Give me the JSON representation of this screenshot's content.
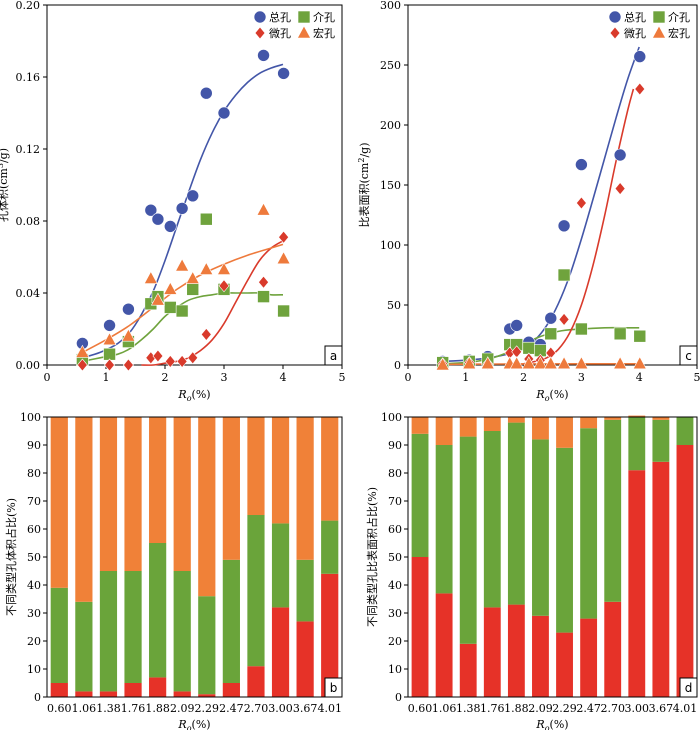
{
  "chart_data": [
    {
      "panel": "a",
      "type": "scatter",
      "xlabel": "Ro(%)",
      "ylabel": "孔体积(cm3/g)",
      "xlim": [
        0,
        5
      ],
      "ylim": [
        0,
        0.2
      ],
      "xticks": [
        "0",
        "1",
        "2",
        "3",
        "4",
        "5"
      ],
      "yticks": [
        "0.00",
        "0.04",
        "0.08",
        "0.12",
        "0.16",
        "0.20"
      ],
      "legend": [
        "总孔",
        "介孔",
        "微孔",
        "宏孔"
      ],
      "series": [
        {
          "name": "总孔",
          "color": "#4356a8",
          "marker": "circle",
          "x": [
            0.6,
            1.06,
            1.38,
            1.76,
            1.88,
            2.09,
            2.29,
            2.47,
            2.7,
            3.0,
            3.67,
            4.01
          ],
          "y": [
            0.012,
            0.022,
            0.031,
            0.086,
            0.081,
            0.077,
            0.087,
            0.094,
            0.151,
            0.14,
            0.172,
            0.162
          ],
          "fit_x": [
            0.6,
            0.9,
            1.2,
            1.4,
            1.6,
            1.8,
            2.0,
            2.2,
            2.4,
            2.6,
            2.8,
            3.0,
            3.2,
            3.4,
            3.6,
            3.8,
            4.0
          ],
          "fit_y": [
            0.004,
            0.007,
            0.012,
            0.018,
            0.028,
            0.041,
            0.058,
            0.077,
            0.096,
            0.114,
            0.129,
            0.141,
            0.15,
            0.157,
            0.162,
            0.165,
            0.167
          ]
        },
        {
          "name": "介孔",
          "color": "#6fa33d",
          "marker": "square",
          "x": [
            0.6,
            1.06,
            1.38,
            1.76,
            1.88,
            2.09,
            2.29,
            2.47,
            2.7,
            3.0,
            3.67,
            4.01
          ],
          "y": [
            0.003,
            0.006,
            0.013,
            0.034,
            0.038,
            0.032,
            0.03,
            0.042,
            0.081,
            0.042,
            0.038,
            0.03
          ],
          "fit_x": [
            0.6,
            0.9,
            1.2,
            1.4,
            1.6,
            1.8,
            2.0,
            2.2,
            2.4,
            2.6,
            2.8,
            3.0,
            3.2,
            3.4,
            3.6,
            3.8,
            4.0
          ],
          "fit_y": [
            0.002,
            0.004,
            0.006,
            0.009,
            0.014,
            0.02,
            0.027,
            0.032,
            0.036,
            0.038,
            0.039,
            0.04,
            0.04,
            0.04,
            0.04,
            0.039,
            0.039
          ]
        },
        {
          "name": "微孔",
          "color": "#d93a2b",
          "marker": "diamond",
          "x": [
            0.6,
            1.06,
            1.38,
            1.76,
            1.88,
            2.09,
            2.29,
            2.47,
            2.7,
            3.0,
            3.67,
            4.01
          ],
          "y": [
            0.0,
            0.0,
            0.0,
            0.004,
            0.005,
            0.002,
            0.002,
            0.004,
            0.017,
            0.044,
            0.046,
            0.071
          ],
          "fit_x": [
            1.6,
            1.8,
            2.0,
            2.2,
            2.4,
            2.6,
            2.8,
            3.0,
            3.2,
            3.4,
            3.6,
            3.8,
            4.0
          ],
          "fit_y": [
            0.0,
            0.0,
            0.001,
            0.002,
            0.004,
            0.008,
            0.014,
            0.023,
            0.035,
            0.047,
            0.058,
            0.065,
            0.069
          ]
        },
        {
          "name": "宏孔",
          "color": "#ee7a3c",
          "marker": "triangle",
          "x": [
            0.6,
            1.06,
            1.38,
            1.76,
            1.88,
            2.09,
            2.29,
            2.47,
            2.7,
            3.0,
            3.67,
            4.01
          ],
          "y": [
            0.007,
            0.014,
            0.016,
            0.048,
            0.036,
            0.042,
            0.055,
            0.048,
            0.053,
            0.053,
            0.086,
            0.059
          ],
          "fit_x": [
            0.6,
            1.0,
            1.4,
            1.8,
            2.2,
            2.6,
            3.0,
            3.4,
            3.8,
            4.0
          ],
          "fit_y": [
            0.007,
            0.014,
            0.022,
            0.032,
            0.042,
            0.05,
            0.056,
            0.061,
            0.065,
            0.067
          ]
        }
      ]
    },
    {
      "panel": "c",
      "type": "scatter",
      "xlabel": "Ro(%)",
      "ylabel": "比表面积(cm2/g)",
      "xlim": [
        0,
        5
      ],
      "ylim": [
        0,
        300
      ],
      "xticks": [
        "0",
        "1",
        "2",
        "3",
        "4",
        "5"
      ],
      "yticks": [
        "0",
        "50",
        "100",
        "150",
        "200",
        "250",
        "300"
      ],
      "legend": [
        "总孔",
        "介孔",
        "微孔",
        "宏孔"
      ],
      "series": [
        {
          "name": "总孔",
          "color": "#4356a8",
          "marker": "circle",
          "x": [
            0.6,
            1.06,
            1.38,
            1.76,
            1.88,
            2.09,
            2.29,
            2.47,
            2.7,
            3.0,
            3.67,
            4.01
          ],
          "y": [
            3,
            4,
            7,
            30,
            33,
            19,
            17,
            39,
            116,
            167,
            175,
            257
          ],
          "fit_x": [
            0.6,
            1.0,
            1.4,
            1.8,
            2.0,
            2.2,
            2.4,
            2.6,
            2.8,
            3.0,
            3.2,
            3.4,
            3.6,
            3.8,
            4.0
          ],
          "fit_y": [
            3,
            4,
            6,
            10,
            14,
            21,
            33,
            51,
            75,
            105,
            138,
            172,
            206,
            238,
            265
          ]
        },
        {
          "name": "介孔",
          "color": "#6fa33d",
          "marker": "square",
          "x": [
            0.6,
            1.06,
            1.38,
            1.76,
            1.88,
            2.09,
            2.29,
            2.47,
            2.7,
            3.0,
            3.67,
            4.01
          ],
          "y": [
            2,
            3,
            5,
            17,
            17,
            14,
            12,
            26,
            75,
            30,
            26,
            24
          ],
          "fit_x": [
            0.6,
            1.0,
            1.4,
            1.8,
            2.2,
            2.6,
            3.0,
            3.4,
            3.8,
            4.0
          ],
          "fit_y": [
            1,
            2,
            5,
            12,
            22,
            28,
            30,
            31,
            31,
            31
          ]
        },
        {
          "name": "微孔",
          "color": "#d93a2b",
          "marker": "diamond",
          "x": [
            0.6,
            1.06,
            1.38,
            1.76,
            1.88,
            2.09,
            2.29,
            2.47,
            2.7,
            3.0,
            3.67,
            4.01
          ],
          "y": [
            1,
            2,
            1,
            10,
            11,
            5,
            4,
            10,
            38,
            135,
            147,
            230
          ],
          "fit_x": [
            1.8,
            2.0,
            2.2,
            2.4,
            2.6,
            2.8,
            3.0,
            3.2,
            3.4,
            3.6,
            3.8,
            3.9
          ],
          "fit_y": [
            0,
            1,
            3,
            6,
            13,
            27,
            50,
            83,
            124,
            170,
            212,
            230
          ]
        },
        {
          "name": "宏孔",
          "color": "#ee7a3c",
          "marker": "triangle",
          "x": [
            0.6,
            1.06,
            1.38,
            1.76,
            1.88,
            2.09,
            2.29,
            2.47,
            2.7,
            3.0,
            3.67,
            4.01
          ],
          "y": [
            0,
            1,
            1,
            1,
            1,
            1,
            1,
            1,
            1,
            1,
            1,
            1
          ],
          "fit_x": [
            0.6,
            1.0,
            2.0,
            3.0,
            4.0
          ],
          "fit_y": [
            0.5,
            0.7,
            0.9,
            1.0,
            1.0
          ]
        }
      ]
    },
    {
      "panel": "b",
      "type": "bar",
      "stacked": true,
      "xlabel": "Ro(%)",
      "ylabel": "不同类型孔体积占比(%)",
      "ylim": [
        0,
        100
      ],
      "yticks": [
        "0",
        "10",
        "20",
        "30",
        "40",
        "50",
        "60",
        "70",
        "80",
        "90",
        "100"
      ],
      "categories": [
        "0.60",
        "1.06",
        "1.38",
        "1.76",
        "1.88",
        "2.09",
        "2.29",
        "2.47",
        "2.70",
        "3.00",
        "3.67",
        "4.01"
      ],
      "series": [
        {
          "name": "微孔",
          "color": "#e63228",
          "values": [
            5,
            2,
            2,
            5,
            7,
            2,
            1,
            5,
            11,
            32,
            27,
            44
          ]
        },
        {
          "name": "介孔",
          "color": "#6aa43a",
          "values": [
            34,
            32,
            43,
            40,
            48,
            43,
            35,
            44,
            54,
            30,
            22,
            19
          ]
        },
        {
          "name": "宏孔",
          "color": "#f08138",
          "values": [
            61,
            66,
            55,
            55,
            45,
            55,
            64,
            51,
            35,
            38,
            51,
            37
          ]
        }
      ]
    },
    {
      "panel": "d",
      "type": "bar",
      "stacked": true,
      "xlabel": "Ro(%)",
      "ylabel": "不同类型孔比表面积占比(%)",
      "ylim": [
        0,
        100
      ],
      "yticks": [
        "0",
        "10",
        "20",
        "30",
        "40",
        "50",
        "60",
        "70",
        "80",
        "90",
        "100"
      ],
      "categories": [
        "0.60",
        "1.06",
        "1.38",
        "1.76",
        "1.88",
        "2.09",
        "2.29",
        "2.47",
        "2.70",
        "3.00",
        "3.67",
        "4.01"
      ],
      "series": [
        {
          "name": "微孔",
          "color": "#e63228",
          "values": [
            50,
            37,
            19,
            32,
            33,
            29,
            23,
            28,
            34,
            81,
            84,
            90
          ]
        },
        {
          "name": "介孔",
          "color": "#6aa43a",
          "values": [
            44,
            53,
            74,
            63,
            65,
            63,
            66,
            68,
            65,
            19,
            15,
            10
          ]
        },
        {
          "name": "宏孔",
          "color": "#f08138",
          "values": [
            6,
            10,
            7,
            5,
            2,
            8,
            11,
            4,
            1,
            0.5,
            1,
            0
          ]
        }
      ]
    }
  ]
}
